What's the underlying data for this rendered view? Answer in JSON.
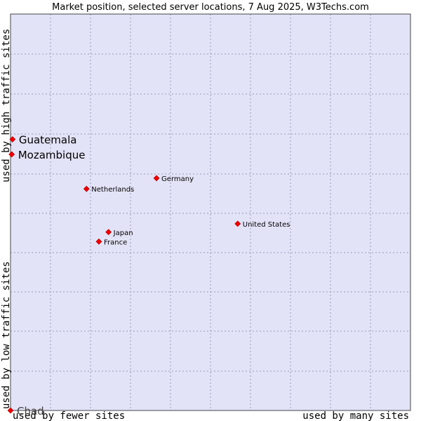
{
  "chart_data": {
    "type": "scatter",
    "title": "Market position, selected server locations, 7 Aug 2025, W3Techs.com",
    "xlabel_low": "used by fewer sites",
    "xlabel_high": "used by many sites",
    "ylabel_low": "used by low traffic sites",
    "ylabel_high": "used by high traffic sites",
    "xlim": [
      0,
      100
    ],
    "ylim": [
      0,
      100
    ],
    "grid": true,
    "point_color": "#ee0000",
    "plot_background": "#e3e3f8",
    "points": [
      {
        "name": "Guatemala",
        "x": 0.5,
        "y": 68.4,
        "emphasis": true
      },
      {
        "name": "Mozambique",
        "x": 0.3,
        "y": 64.6,
        "emphasis": true
      },
      {
        "name": "Germany",
        "x": 36.5,
        "y": 58.6,
        "emphasis": false
      },
      {
        "name": "Netherlands",
        "x": 19.0,
        "y": 55.9,
        "emphasis": false
      },
      {
        "name": "United States",
        "x": 56.8,
        "y": 47.1,
        "emphasis": false
      },
      {
        "name": "Japan",
        "x": 24.5,
        "y": 45.0,
        "emphasis": false
      },
      {
        "name": "France",
        "x": 22.1,
        "y": 42.6,
        "emphasis": false
      },
      {
        "name": "Chad",
        "x": 0.0,
        "y": 0.0,
        "emphasis": true,
        "muted": true
      }
    ]
  }
}
